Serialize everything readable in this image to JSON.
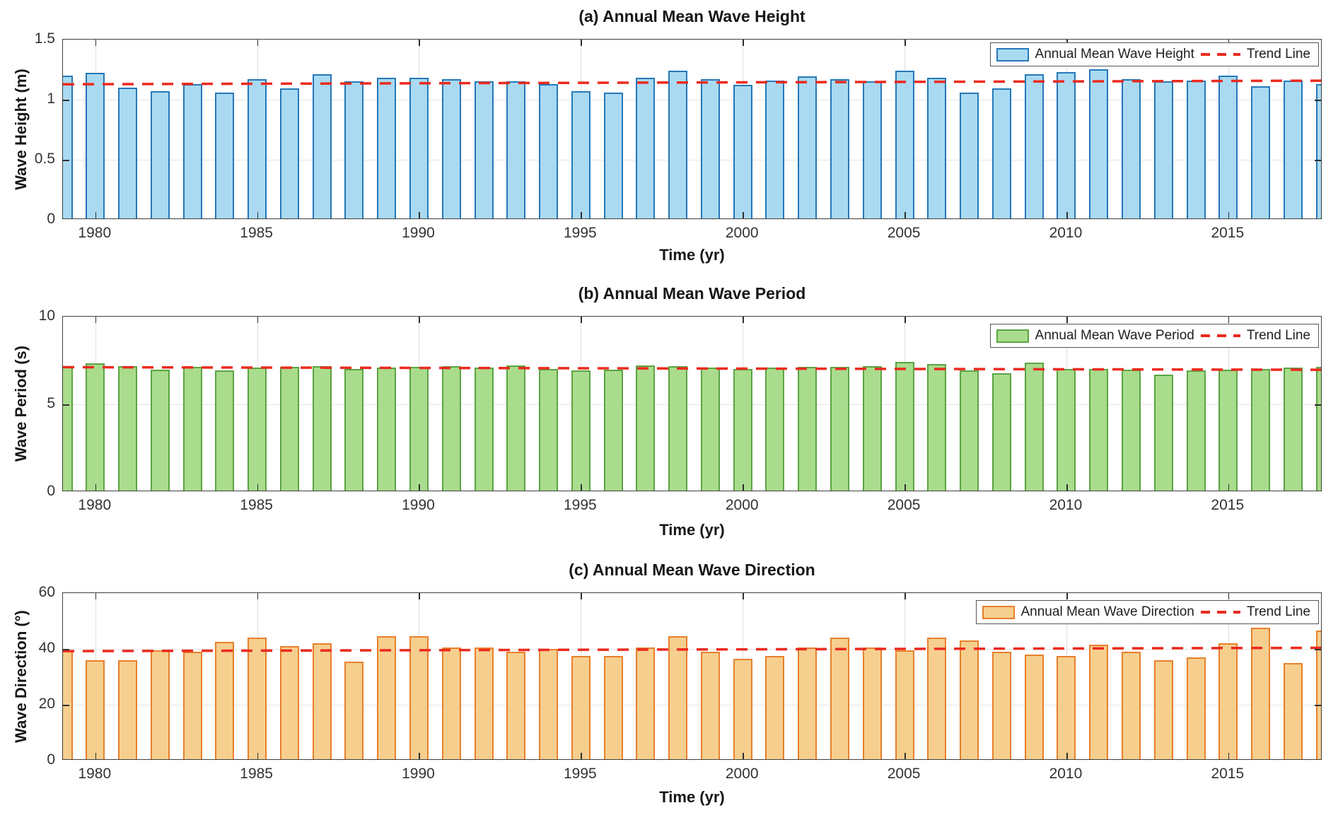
{
  "figure": {
    "background": "#ffffff",
    "frame_color": "#3f3f3f",
    "grid_color": "#e4e4e4",
    "x_axis": {
      "label": "Time (yr)",
      "xlim": [
        1979,
        2017.91
      ],
      "tick_years": [
        1980,
        1985,
        1990,
        1995,
        2000,
        2005,
        2010,
        2015
      ],
      "tick_labels": [
        "1980",
        "1985",
        "1990",
        "1995",
        "2000",
        "2005",
        "2010",
        "2015"
      ]
    }
  },
  "chart_data": [
    {
      "type": "bar",
      "panel": "a",
      "title": "(a) Annual Mean Wave Height",
      "ylabel": "Wave Height (m)",
      "xlabel": "Time (yr)",
      "ylim": [
        0,
        1.5
      ],
      "ytick_values": [
        0,
        0.5,
        1,
        1.5
      ],
      "ytick_labels": [
        "0",
        "0.5",
        "1",
        "1.5"
      ],
      "grid": true,
      "legend_position": "top-right",
      "legend_series_label": "Annual Mean Wave Height",
      "legend_trend_label": "Trend Line",
      "bar_fill": "#aadaf2",
      "bar_edge": "#2478b8",
      "trend_color": "#eb2a1e",
      "years": [
        1979,
        1980,
        1981,
        1982,
        1983,
        1984,
        1985,
        1986,
        1987,
        1988,
        1989,
        1990,
        1991,
        1992,
        1993,
        1994,
        1995,
        1996,
        1997,
        1998,
        1999,
        2000,
        2001,
        2002,
        2003,
        2004,
        2005,
        2006,
        2007,
        2008,
        2009,
        2010,
        2011,
        2012,
        2013,
        2014,
        2015,
        2016,
        2017,
        2018
      ],
      "values": [
        1.19,
        1.21,
        1.09,
        1.06,
        1.12,
        1.05,
        1.16,
        1.08,
        1.2,
        1.14,
        1.17,
        1.17,
        1.16,
        1.14,
        1.14,
        1.12,
        1.06,
        1.05,
        1.17,
        1.23,
        1.16,
        1.11,
        1.15,
        1.18,
        1.16,
        1.14,
        1.23,
        1.17,
        1.05,
        1.08,
        1.2,
        1.22,
        1.24,
        1.16,
        1.14,
        1.15,
        1.19,
        1.1,
        1.15,
        1.12
      ],
      "trend": {
        "start_value": 1.128,
        "end_value": 1.158
      }
    },
    {
      "type": "bar",
      "panel": "b",
      "title": "(b) Annual Mean Wave Period",
      "ylabel": "Wave Period (s)",
      "xlabel": "Time (yr)",
      "ylim": [
        0,
        10
      ],
      "ytick_values": [
        0,
        5,
        10
      ],
      "ytick_labels": [
        "0",
        "5",
        "10"
      ],
      "grid": true,
      "legend_position": "top-right",
      "legend_series_label": "Annual Mean Wave Period",
      "legend_trend_label": "Trend Line",
      "bar_fill": "#a9dc8d",
      "bar_edge": "#5ba343",
      "trend_color": "#eb2a1e",
      "years": [
        1979,
        1980,
        1981,
        1982,
        1983,
        1984,
        1985,
        1986,
        1987,
        1988,
        1989,
        1990,
        1991,
        1992,
        1993,
        1994,
        1995,
        1996,
        1997,
        1998,
        1999,
        2000,
        2001,
        2002,
        2003,
        2004,
        2005,
        2006,
        2007,
        2008,
        2009,
        2010,
        2011,
        2012,
        2013,
        2014,
        2015,
        2016,
        2017,
        2018
      ],
      "values": [
        7.1,
        7.25,
        7.1,
        6.9,
        7.05,
        6.85,
        7.0,
        7.05,
        7.1,
        6.95,
        7.0,
        7.05,
        7.1,
        7.0,
        7.15,
        6.95,
        6.85,
        6.9,
        7.15,
        7.1,
        7.0,
        6.95,
        7.0,
        7.05,
        7.05,
        7.1,
        7.35,
        7.2,
        6.85,
        6.7,
        7.3,
        6.95,
        6.95,
        6.9,
        6.6,
        6.85,
        6.9,
        6.95,
        7.0,
        7.05
      ],
      "trend": {
        "start_value": 7.12,
        "end_value": 6.97
      }
    },
    {
      "type": "bar",
      "panel": "c",
      "title": "(c) Annual Mean Wave Direction",
      "ylabel": "Wave Direction (°)",
      "xlabel": "Time (yr)",
      "ylim": [
        0,
        60
      ],
      "ytick_values": [
        0,
        20,
        40,
        60
      ],
      "ytick_labels": [
        "0",
        "20",
        "40",
        "60"
      ],
      "grid": true,
      "legend_position": "top-right",
      "legend_series_label": "Annual Mean Wave Direction",
      "legend_trend_label": "Trend Line",
      "bar_fill": "#f6cf8e",
      "bar_edge": "#e7802c",
      "trend_color": "#eb2a1e",
      "years": [
        1979,
        1980,
        1981,
        1982,
        1983,
        1984,
        1985,
        1986,
        1987,
        1988,
        1989,
        1990,
        1991,
        1992,
        1993,
        1994,
        1995,
        1996,
        1997,
        1998,
        1999,
        2000,
        2001,
        2002,
        2003,
        2004,
        2005,
        2006,
        2007,
        2008,
        2009,
        2010,
        2011,
        2012,
        2013,
        2014,
        2015,
        2016,
        2017,
        2018
      ],
      "values": [
        39,
        35.5,
        35.5,
        39,
        38.5,
        42,
        43.5,
        40.5,
        41.5,
        35,
        44,
        44,
        40,
        40,
        38.5,
        39.5,
        37,
        37,
        40,
        44,
        38.5,
        36,
        37,
        40,
        43.5,
        40,
        39,
        43.5,
        42.5,
        38.5,
        37.5,
        37,
        41,
        38.5,
        35.5,
        36.5,
        41.5,
        47,
        34.5,
        46
      ],
      "trend": {
        "start_value": 39.2,
        "end_value": 40.4
      }
    }
  ]
}
